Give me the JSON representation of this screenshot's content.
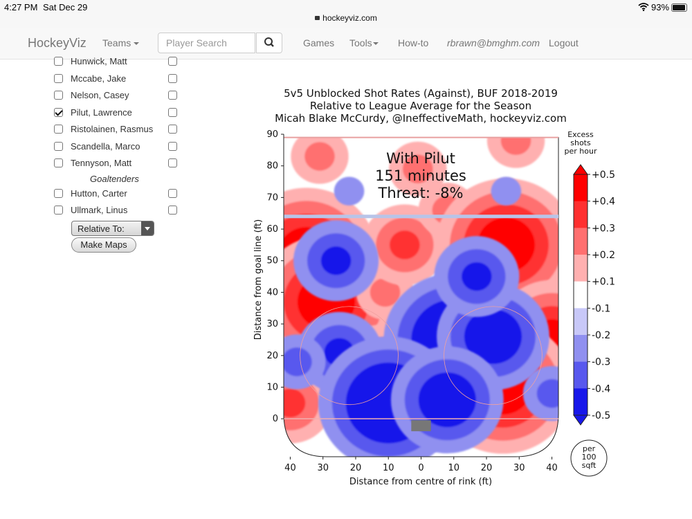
{
  "status_bar": {
    "time": "4:27 PM",
    "date": "Sat Dec 29",
    "url": "hockeyviz.com",
    "battery_pct": "93%",
    "battery_level": 0.93
  },
  "navbar": {
    "brand": "HockeyViz",
    "teams": "Teams",
    "search_placeholder": "Player Search",
    "games": "Games",
    "tools": "Tools",
    "howto": "How-to",
    "email": "rbrawn@bmghm.com",
    "logout": "Logout"
  },
  "sidebar": {
    "players": [
      {
        "name": "Hunwick, Matt",
        "checked": false
      },
      {
        "name": "Mccabe, Jake",
        "checked": false
      },
      {
        "name": "Nelson, Casey",
        "checked": false
      },
      {
        "name": "Pilut, Lawrence",
        "checked": true
      },
      {
        "name": "Ristolainen, Rasmus",
        "checked": false
      },
      {
        "name": "Scandella, Marco",
        "checked": false
      },
      {
        "name": "Tennyson, Matt",
        "checked": false
      }
    ],
    "goaltenders_header": "Goaltenders",
    "goalies": [
      {
        "name": "Hutton, Carter",
        "checked": false
      },
      {
        "name": "Ullmark, Linus",
        "checked": false
      }
    ],
    "relative_to_label": "Relative To:",
    "make_maps_label": "Make Maps"
  },
  "chart_data": {
    "type": "heatmap",
    "title": "5v5 Unblocked Shot Rates (Against), BUF 2018-2019",
    "subtitle": "Relative to League Average for the Season",
    "credit": "Micah Blake McCurdy, @IneffectiveMath, hockeyviz.com",
    "annotation_lines": [
      "With Pilut",
      "151 minutes",
      "Threat: -8%"
    ],
    "xlabel": "Distance from centre of rink (ft)",
    "ylabel": "Distance from goal line (ft)",
    "xlim": [
      -42,
      42
    ],
    "ylim": [
      -12,
      90
    ],
    "x_ticks": [
      -40,
      -30,
      -20,
      -10,
      0,
      10,
      20,
      30,
      40
    ],
    "x_tick_labels": [
      "40",
      "30",
      "20",
      "10",
      "0",
      "10",
      "20",
      "30",
      "40"
    ],
    "y_ticks": [
      0,
      10,
      20,
      30,
      40,
      50,
      60,
      70,
      80,
      90
    ],
    "y_tick_labels": [
      "0",
      "10",
      "20",
      "30",
      "40",
      "50",
      "60",
      "70",
      "80",
      "90"
    ],
    "colorbar": {
      "title_lines": [
        "Excess",
        "shots",
        "per hour"
      ],
      "labels": [
        "+0.5",
        "+0.4",
        "+0.3",
        "+0.2",
        "+0.1",
        "-0.1",
        "-0.2",
        "-0.3",
        "-0.4",
        "-0.5"
      ],
      "colors": [
        "#ff0000",
        "#ff3030",
        "#ff7070",
        "#ffb0b0",
        "#ffffff",
        "#c8c8f8",
        "#9090f0",
        "#5858ee",
        "#1818ea"
      ],
      "unit_lines": [
        "per",
        "100",
        "sqft"
      ]
    },
    "levels": [
      0.1,
      0.2,
      0.3,
      0.4,
      0.5
    ],
    "hotspots": [
      {
        "x": -35,
        "y": 52,
        "value": 0.5
      },
      {
        "x": -29,
        "y": 37,
        "value": 0.5
      },
      {
        "x": -40,
        "y": 5,
        "value": 0.3
      },
      {
        "x": -31,
        "y": 83,
        "value": 0.2
      },
      {
        "x": -1,
        "y": 79,
        "value": 0.2
      },
      {
        "x": -11,
        "y": 40,
        "value": 0.2
      },
      {
        "x": -12,
        "y": 17,
        "value": 0.3
      },
      {
        "x": -5,
        "y": 55,
        "value": 0.3
      },
      {
        "x": 8,
        "y": 66,
        "value": 0.2
      },
      {
        "x": 26,
        "y": 55,
        "value": 0.5
      },
      {
        "x": 29,
        "y": 88,
        "value": 0.2
      },
      {
        "x": 40,
        "y": 27,
        "value": 0.4
      },
      {
        "x": 25,
        "y": 10,
        "value": 0.5
      },
      {
        "x": -26,
        "y": 50,
        "value": -0.3
      },
      {
        "x": 10,
        "y": 25,
        "value": -0.5
      },
      {
        "x": 22,
        "y": 26,
        "value": -0.4
      },
      {
        "x": 17,
        "y": 45,
        "value": -0.3
      },
      {
        "x": -25,
        "y": 21,
        "value": -0.3
      },
      {
        "x": -10,
        "y": 5,
        "value": -0.5
      },
      {
        "x": 8,
        "y": 6,
        "value": -0.4
      },
      {
        "x": -38,
        "y": 18,
        "value": -0.2
      },
      {
        "x": 40,
        "y": 8,
        "value": -0.2
      },
      {
        "x": 26,
        "y": 72,
        "value": -0.1
      },
      {
        "x": -22,
        "y": 72,
        "value": -0.1
      }
    ],
    "blueline_y": 64,
    "endline_y": 89,
    "goal_line_y": 0
  }
}
